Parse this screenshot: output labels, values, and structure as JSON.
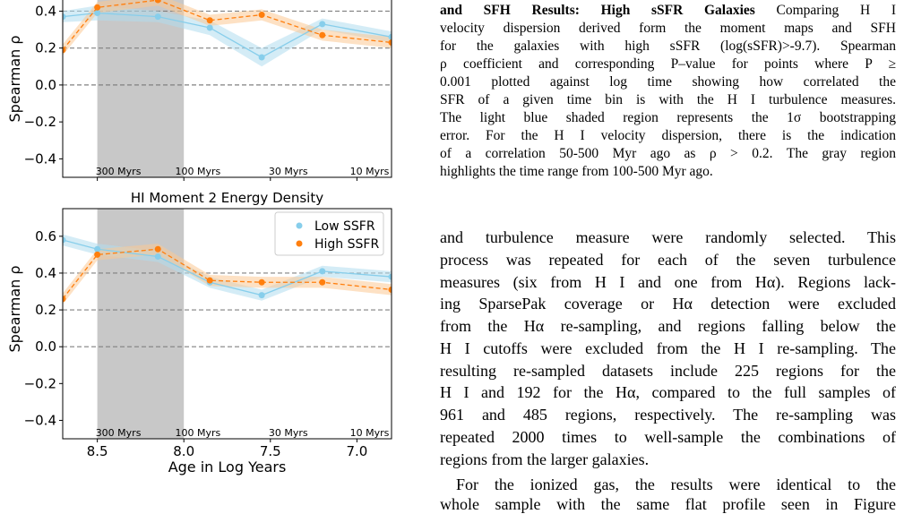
{
  "figure_caption": {
    "title_bold": "and SFH Results: High sSFR Galaxies",
    "title_rest": "Comparing H I",
    "lines": [
      "velocity dispersion derived form the moment maps and SFH",
      "for the galaxies with high sSFR (log(sSFR)>-9.7). Spearman",
      "ρ coefficient and corresponding P–value for points where P ≥",
      "0.001 plotted against log time showing how correlated the",
      "SFR of a given time bin is with the H I turbulence measures.",
      "The light blue shaded region represents the 1σ bootstrapping",
      "error. For the H I velocity dispersion, there is the indication",
      "of a correlation 50-500 Myr ago as ρ > 0.2. The gray region",
      "highlights the time range from 100-500 Myr ago."
    ]
  },
  "body": {
    "paragraph_1": [
      "and turbulence measure were randomly selected. This",
      "process was repeated for each of the seven turbulence",
      "measures (six from H I and one from Hα). Regions lack-",
      "ing SparsePak coverage or Hα detection were excluded",
      "from the Hα re-sampling, and regions falling below the",
      "H I cutoffs were excluded from the H I re-sampling. The",
      "resulting re-sampled datasets include 225 regions for the",
      "H I and 192 for the Hα, compared to the full samples of",
      "961 and 485 regions, respectively. The re-sampling was",
      "repeated 2000 times to well-sample the combinations of",
      "regions from the larger galaxies."
    ],
    "paragraph_2": [
      "For the ionized gas, the results were identical to the",
      "whole sample with the same flat profile seen in Figure"
    ]
  },
  "chart_data": [
    {
      "type": "line",
      "ylabel": "Spearman ρ",
      "x": [
        8.7,
        8.5,
        8.15,
        7.85,
        7.55,
        7.2,
        6.8
      ],
      "xlim": [
        8.7,
        6.8
      ],
      "ylim": [
        -0.5,
        0.47
      ],
      "xticks": {
        "values": [
          8.5,
          8.0,
          7.5,
          7.0
        ]
      },
      "yticks": {
        "values": [
          -0.4,
          -0.2,
          0.0,
          0.2,
          0.4
        ],
        "labels": [
          "−0.4",
          "−0.2",
          "0.0",
          "0.2",
          "0.4"
        ]
      },
      "reference_lines": [
        0.4,
        0.2,
        0.0
      ],
      "shaded_xrange": [
        8.5,
        8.0
      ],
      "shaded_color": "#c8c8c8",
      "annotations": [
        {
          "text": "300 Myrs",
          "x": 8.51
        },
        {
          "text": "100 Myrs",
          "x": 8.05
        },
        {
          "text": "30 Myrs",
          "x": 7.51
        },
        {
          "text": "10 Myrs",
          "x": 7.04
        }
      ],
      "series": [
        {
          "color": "#87ceeb",
          "band_color": "#b0dcef",
          "values": [
            0.37,
            0.39,
            0.37,
            0.31,
            0.15,
            0.33,
            0.26
          ],
          "error": [
            0.03,
            0.04,
            0.03,
            0.04,
            0.05,
            0.03,
            0.03
          ]
        },
        {
          "color": "#ff7f0e",
          "band_color": "#fcc994",
          "values": [
            0.19,
            0.42,
            0.46,
            0.35,
            0.38,
            0.27,
            0.23
          ],
          "error": [
            0.03,
            0.03,
            0.03,
            0.03,
            0.03,
            0.03,
            0.03
          ]
        }
      ]
    },
    {
      "type": "line",
      "title": "HI Moment 2 Energy Density",
      "xlabel": "Age in Log Years",
      "ylabel": "Spearman ρ",
      "x": [
        8.7,
        8.5,
        8.15,
        7.85,
        7.55,
        7.2,
        6.8
      ],
      "xlim": [
        8.7,
        6.8
      ],
      "ylim": [
        -0.5,
        0.75
      ],
      "xticks": {
        "values": [
          8.5,
          8.0,
          7.5,
          7.0
        ],
        "labels": [
          "8.5",
          "8.0",
          "7.5",
          "7.0"
        ]
      },
      "yticks": {
        "values": [
          -0.4,
          -0.2,
          0.0,
          0.2,
          0.4,
          0.6
        ],
        "labels": [
          "−0.4",
          "−0.2",
          "0.0",
          "0.2",
          "0.4",
          "0.6"
        ]
      },
      "reference_lines": [
        0.4,
        0.2,
        0.0
      ],
      "shaded_xrange": [
        8.5,
        8.0
      ],
      "shaded_color": "#c8c8c8",
      "annotations": [
        {
          "text": "300 Myrs",
          "x": 8.51
        },
        {
          "text": "100 Myrs",
          "x": 8.05
        },
        {
          "text": "30 Myrs",
          "x": 7.51
        },
        {
          "text": "10 Myrs",
          "x": 7.04
        }
      ],
      "legend": "top-right",
      "series": [
        {
          "name": "Low SSFR",
          "color": "#87ceeb",
          "band_color": "#b0dcef",
          "values": [
            0.58,
            0.53,
            0.49,
            0.35,
            0.28,
            0.41,
            0.38
          ],
          "error": [
            0.03,
            0.03,
            0.03,
            0.03,
            0.03,
            0.03,
            0.03
          ]
        },
        {
          "name": "High SSFR",
          "color": "#ff7f0e",
          "band_color": "#fcc994",
          "values": [
            0.26,
            0.5,
            0.53,
            0.36,
            0.35,
            0.35,
            0.31
          ],
          "error": [
            0.03,
            0.03,
            0.03,
            0.03,
            0.03,
            0.03,
            0.03
          ]
        }
      ]
    }
  ]
}
